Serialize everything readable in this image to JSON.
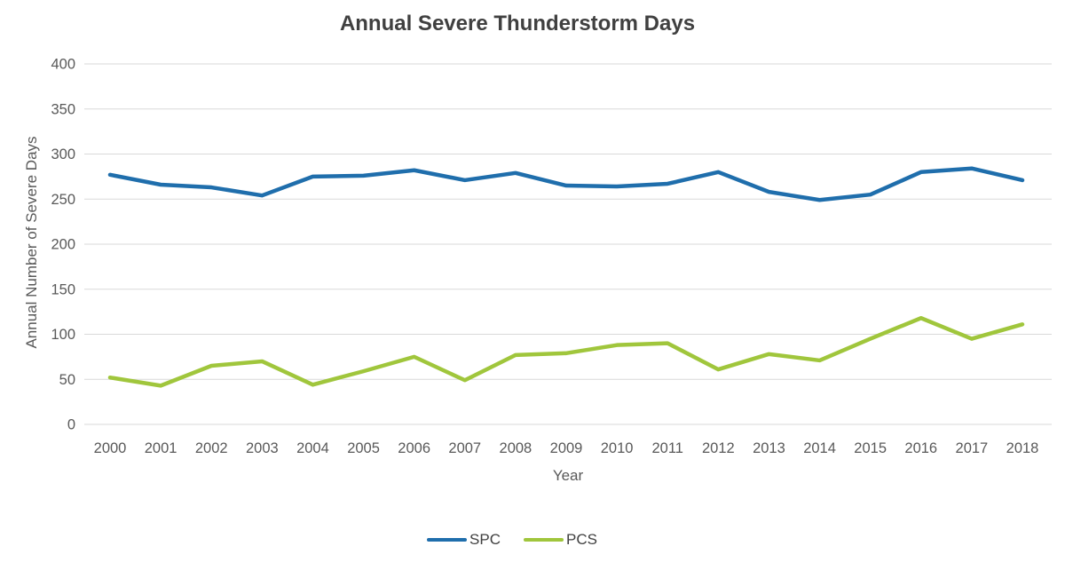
{
  "title": "Annual Severe Thunderstorm Days",
  "colors": {
    "spc": "#1F6EAC",
    "pcs": "#A0C63C",
    "grid": "#D9D9D9",
    "tick_text": "#595959",
    "title_text": "#404040"
  },
  "chart_data": {
    "type": "line",
    "title": "Annual Severe Thunderstorm Days",
    "xlabel": "Year",
    "ylabel": "Annual Number of Severe Days",
    "x": [
      2000,
      2001,
      2002,
      2003,
      2004,
      2005,
      2006,
      2007,
      2008,
      2009,
      2010,
      2011,
      2012,
      2013,
      2014,
      2015,
      2016,
      2017,
      2018
    ],
    "series": [
      {
        "name": "SPC",
        "color": "#1F6EAC",
        "values": [
          277,
          266,
          263,
          254,
          275,
          276,
          282,
          271,
          279,
          265,
          264,
          267,
          280,
          258,
          249,
          255,
          280,
          284,
          271
        ]
      },
      {
        "name": "PCS",
        "color": "#A0C63C",
        "values": [
          52,
          43,
          65,
          70,
          44,
          59,
          75,
          49,
          77,
          79,
          88,
          90,
          61,
          78,
          71,
          95,
          118,
          95,
          111
        ]
      }
    ],
    "ylim": [
      0,
      400
    ],
    "ytick_step": 50,
    "grid": true,
    "legend_position": "bottom"
  }
}
